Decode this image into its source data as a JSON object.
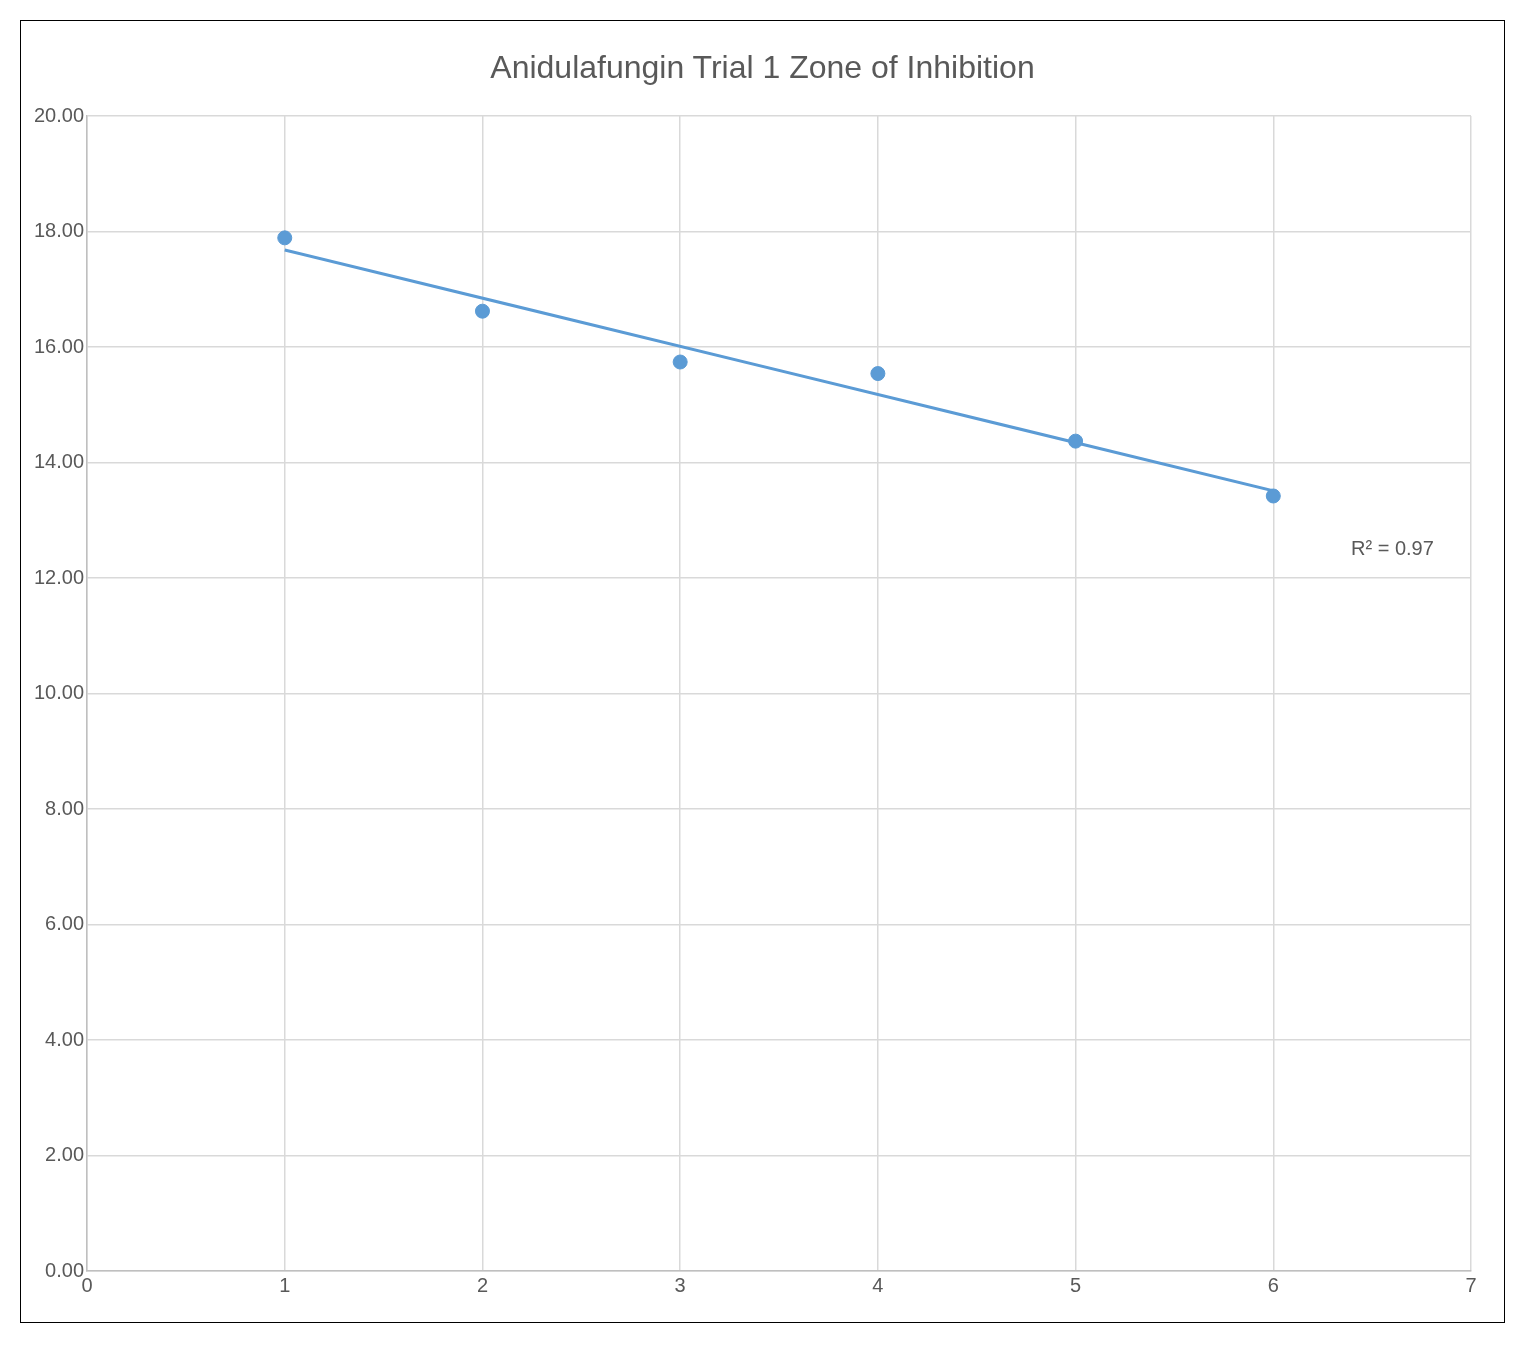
{
  "chart_data": {
    "type": "scatter",
    "title": "Anidulafungin  Trial 1 Zone of Inhibition",
    "series": [
      {
        "color": "#5b9bd5",
        "x": [
          1,
          2,
          3,
          4,
          5,
          6
        ],
        "values": [
          17.89,
          16.62,
          15.74,
          15.54,
          14.37,
          13.42
        ],
        "marker": "circle"
      },
      {
        "type": "line",
        "color": "#5b9bd5",
        "x": [
          1,
          6
        ],
        "values": [
          17.68,
          13.51
        ],
        "line_style": "solid"
      }
    ],
    "xlim": [
      0,
      7
    ],
    "xticks": [
      0,
      1,
      2,
      3,
      4,
      5,
      6,
      7
    ],
    "ylim": [
      0,
      20
    ],
    "yticks": [
      {
        "value": 0,
        "label": "0.00"
      },
      {
        "value": 2,
        "label": "2.00"
      },
      {
        "value": 4,
        "label": "4.00"
      },
      {
        "value": 6,
        "label": "6.00"
      },
      {
        "value": 8,
        "label": "8.00"
      },
      {
        "value": 10,
        "label": "10.00"
      },
      {
        "value": 12,
        "label": "12.00"
      },
      {
        "value": 14,
        "label": "14.00"
      },
      {
        "value": 16,
        "label": "16.00"
      },
      {
        "value": 18,
        "label": "18.00"
      },
      {
        "value": 20,
        "label": "20.00"
      }
    ],
    "grid": true,
    "legend": false,
    "annotations": [
      "R² = 0.97"
    ]
  }
}
